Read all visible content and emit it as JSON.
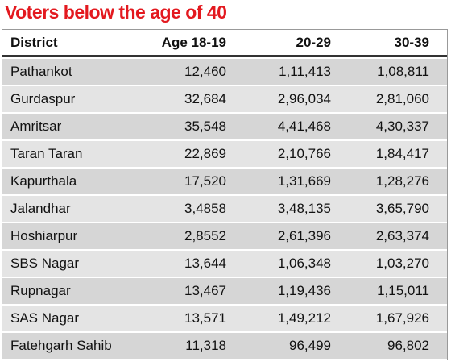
{
  "title": "Voters below the age of 40",
  "table": {
    "header": [
      "District",
      "Age 18-19",
      "20-29",
      "30-39"
    ],
    "rows": [
      [
        "Pathankot",
        "12,460",
        "1,11,413",
        "1,08,811"
      ],
      [
        "Gurdaspur",
        "32,684",
        "2,96,034",
        "2,81,060"
      ],
      [
        "Amritsar",
        "35,548",
        "4,41,468",
        "4,30,337"
      ],
      [
        "Taran Taran",
        "22,869",
        "2,10,766",
        "1,84,417"
      ],
      [
        "Kapurthala",
        "17,520",
        "1,31,669",
        "1,28,276"
      ],
      [
        "Jalandhar",
        "3,4858",
        "3,48,135",
        "3,65,790"
      ],
      [
        "Hoshiarpur",
        "2,8552",
        "2,61,396",
        "2,63,374"
      ],
      [
        "SBS Nagar",
        "13,644",
        "1,06,348",
        "1,03,270"
      ],
      [
        "Rupnagar",
        "13,467",
        "1,19,436",
        "1,15,011"
      ],
      [
        "SAS Nagar",
        "13,571",
        "1,49,212",
        "1,67,926"
      ],
      [
        "Fatehgarh Sahib",
        "11,318",
        "96,499",
        "96,802"
      ]
    ]
  }
}
